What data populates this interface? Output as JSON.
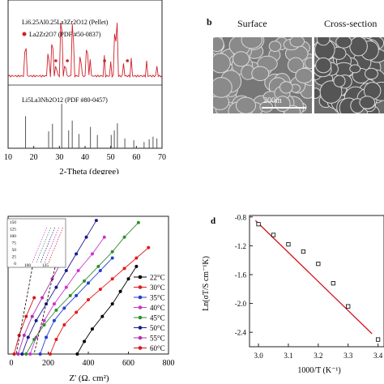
{
  "panel_a": {
    "legend_pellet": "Li6.25Al0.25La3Zr2O12 (Pellet)",
    "legend_pdf_top": "La2Zr2O7 (PDF #50-0837)",
    "legend_pdf_bottom": "Li5La3Nb2O12 (PDF #80-0457)",
    "xlabel": "2-Theta (degree)",
    "x_ticks": [
      "10",
      "20",
      "30",
      "40",
      "50",
      "60",
      "70"
    ]
  },
  "panel_b": {
    "letter": "b",
    "surface_label": "Surface",
    "cross_label": "Cross-section",
    "scalebar": "200m"
  },
  "panel_c": {
    "xlabel": "Z' (Ω. cm²)",
    "x_ticks": [
      "0",
      "200",
      "400",
      "600",
      "800"
    ],
    "inset_y_ticks": [
      "150",
      "125",
      "100",
      "75",
      "50",
      "25",
      "0"
    ],
    "inset_x_ticks": [
      "100",
      "125"
    ],
    "legend": [
      "22°C",
      "30°C",
      "35°C",
      "40°C",
      "45°C",
      "50°C",
      "55°C",
      "60°C"
    ],
    "colors": [
      "#000000",
      "#e41a1c",
      "#1f3fcf",
      "#cc33cc",
      "#2f8f2f",
      "#1a1a8c",
      "#b030b0",
      "#d4141c"
    ]
  },
  "panel_d": {
    "letter": "d",
    "ylabel": "Ln(σT/S cm⁻¹K)",
    "xlabel": "1000/T (K⁻¹)",
    "x_ticks": [
      "3.0",
      "3.1",
      "3.2",
      "3.3",
      "3.4"
    ],
    "y_ticks": [
      "-0.8",
      "-1.2",
      "-1.6",
      "-2.0",
      "-2.4"
    ]
  },
  "chart_data": [
    {
      "type": "line",
      "title": "",
      "xlabel": "2-Theta (degree)",
      "ylabel": "",
      "xlim": [
        10,
        70
      ],
      "series": [
        {
          "name": "Li6.25Al0.25La3Zr2O12 (Pellet)",
          "x": [
            16.8,
            25.6,
            27.2,
            28.6,
            30.7,
            32.2,
            35.1,
            38.1,
            40.7,
            42.0,
            47.5,
            50.0,
            51.5,
            52.4,
            55.0,
            58.0,
            64.0,
            68.0
          ],
          "y": [
            55,
            40,
            62,
            20,
            100,
            22,
            88,
            35,
            52,
            28,
            34,
            25,
            65,
            90,
            22,
            30,
            26,
            18
          ]
        },
        {
          "name": "La2Zr2O7 (PDF #50-0837)",
          "x": [
            28.6,
            33.1,
            47.6,
            56.5
          ],
          "y": [
            1,
            1,
            1,
            1
          ]
        },
        {
          "name": "Li5La3Nb2O12 (PDF #80-0457)",
          "x": [
            16.8,
            25.8,
            27.3,
            30.9,
            33.6,
            35.0,
            37.6,
            42.1,
            44.8,
            50.2,
            51.4,
            52.6,
            55.5,
            59.0,
            63.0,
            65.0,
            66.5,
            68.0
          ],
          "y": [
            72,
            38,
            55,
            100,
            40,
            62,
            32,
            48,
            30,
            30,
            40,
            56,
            22,
            18,
            14,
            20,
            26,
            22
          ]
        }
      ]
    },
    {
      "type": "scatter",
      "title": "",
      "xlabel": "Z' (Ω. cm²)",
      "xlim": [
        0,
        800
      ],
      "series": [
        {
          "name": "22°C",
          "x": [
            345,
            380,
            420,
            470,
            520,
            560,
            600,
            640
          ],
          "y": [
            0,
            30,
            60,
            90,
            120,
            150,
            180,
            210
          ]
        },
        {
          "name": "30°C",
          "x": [
            210,
            240,
            280,
            340,
            400,
            460,
            520,
            580,
            640,
            700
          ],
          "y": [
            0,
            35,
            70,
            100,
            130,
            155,
            180,
            205,
            230,
            255
          ]
        },
        {
          "name": "35°C",
          "x": [
            160,
            190,
            230,
            280,
            340,
            400,
            460,
            520
          ],
          "y": [
            0,
            40,
            80,
            110,
            140,
            170,
            200,
            230
          ]
        },
        {
          "name": "40°C",
          "x": [
            110,
            140,
            180,
            230,
            290,
            350,
            420,
            480
          ],
          "y": [
            0,
            40,
            80,
            120,
            160,
            200,
            240,
            280
          ]
        },
        {
          "name": "45°C",
          "x": [
            90,
            130,
            180,
            240,
            310,
            380,
            450,
            520,
            580,
            650
          ],
          "y": [
            0,
            35,
            70,
            105,
            140,
            175,
            210,
            245,
            280,
            315
          ]
        },
        {
          "name": "50°C",
          "x": [
            70,
            100,
            140,
            190,
            240,
            290,
            340,
            390,
            440
          ],
          "y": [
            0,
            40,
            80,
            120,
            160,
            200,
            240,
            280,
            320
          ]
        },
        {
          "name": "55°C",
          "x": [
            50,
            80,
            120,
            170,
            220,
            270
          ],
          "y": [
            0,
            45,
            90,
            135,
            180,
            225
          ]
        },
        {
          "name": "60°C",
          "x": [
            30,
            55,
            90,
            130
          ],
          "y": [
            0,
            45,
            90,
            135
          ]
        }
      ]
    },
    {
      "type": "scatter",
      "title": "",
      "xlabel": "1000/T (K⁻¹)",
      "ylabel": "Ln(σT/S cm⁻¹K)",
      "xlim": [
        2.97,
        3.42
      ],
      "ylim": [
        -2.6,
        -0.78
      ],
      "series": [
        {
          "name": "",
          "x": [
            3.0,
            3.05,
            3.1,
            3.15,
            3.2,
            3.25,
            3.3,
            3.4
          ],
          "y": [
            -0.9,
            -1.05,
            -1.18,
            -1.28,
            -1.45,
            -1.72,
            -2.04,
            -2.5
          ]
        },
        {
          "name": "",
          "x": [
            2.99,
            3.38
          ],
          "y": [
            -0.85,
            -2.42
          ]
        }
      ]
    }
  ]
}
